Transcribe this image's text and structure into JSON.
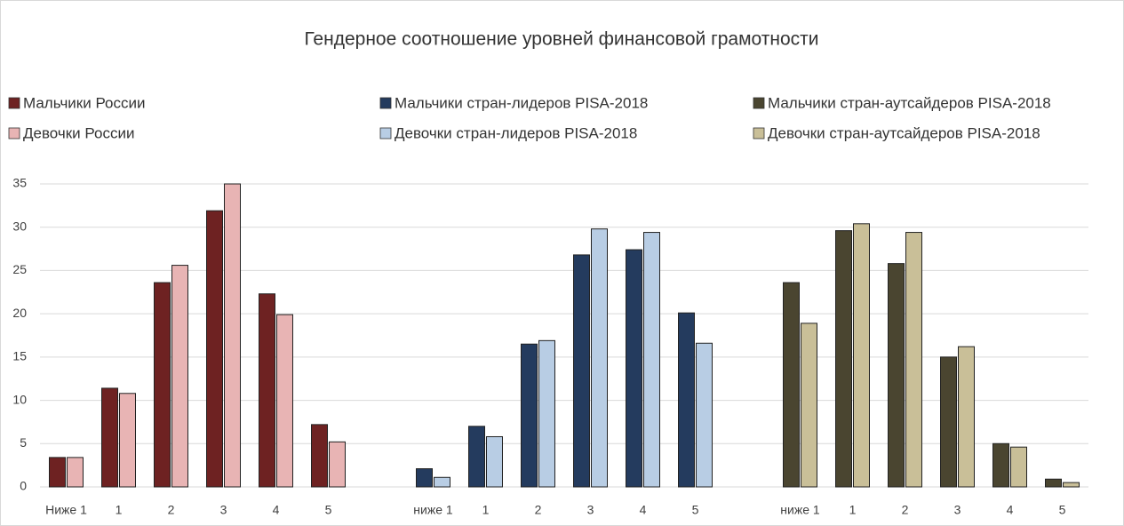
{
  "chart_data": {
    "type": "bar",
    "title": "Гендерное соотношение уровней финансовой грамотности",
    "categories": [
      "Ниже 1",
      "1",
      "2",
      "3",
      "4",
      "5",
      null,
      "ниже 1",
      "1",
      "2",
      "3",
      "4",
      "5",
      null,
      "ниже 1",
      "1",
      "2",
      "3",
      "4",
      "5"
    ],
    "series": [
      {
        "name": "Мальчики России",
        "color": "#6e2222",
        "values": [
          3.4,
          11.4,
          23.6,
          31.9,
          22.3,
          7.2,
          null,
          null,
          null,
          null,
          null,
          null,
          null,
          null,
          null,
          null,
          null,
          null,
          null,
          null
        ]
      },
      {
        "name": "Девочки России",
        "color": "#e8b4b4",
        "values": [
          3.4,
          10.8,
          25.6,
          35,
          19.9,
          5.2,
          null,
          null,
          null,
          null,
          null,
          null,
          null,
          null,
          null,
          null,
          null,
          null,
          null,
          null
        ]
      },
      {
        "name": "Мальчики стран-лидеров PISA-2018",
        "color": "#243b5e",
        "values": [
          null,
          null,
          null,
          null,
          null,
          null,
          null,
          2.1,
          7.0,
          16.5,
          26.8,
          27.4,
          20.1,
          null,
          null,
          null,
          null,
          null,
          null,
          null
        ]
      },
      {
        "name": "Девочки стран-лидеров PISA-2018",
        "color": "#b8cde4",
        "values": [
          null,
          null,
          null,
          null,
          null,
          null,
          null,
          1.1,
          5.8,
          16.9,
          29.8,
          29.4,
          16.6,
          null,
          null,
          null,
          null,
          null,
          null,
          null
        ]
      },
      {
        "name": "Мальчики стран-аутсайдеров PISA-2018",
        "color": "#4a4530",
        "values": [
          null,
          null,
          null,
          null,
          null,
          null,
          null,
          null,
          null,
          null,
          null,
          null,
          null,
          null,
          23.6,
          29.6,
          25.8,
          15.0,
          5.0,
          0.9
        ]
      },
      {
        "name": "Девочки стран-аутсайдеров PISA-2018",
        "color": "#c9bf98",
        "values": [
          null,
          null,
          null,
          null,
          null,
          null,
          null,
          null,
          null,
          null,
          null,
          null,
          null,
          null,
          18.9,
          30.4,
          29.4,
          16.2,
          4.6,
          0.5
        ]
      }
    ],
    "ylim": [
      0,
      35
    ],
    "yticks": [
      0,
      5,
      10,
      15,
      20,
      25,
      30,
      35
    ],
    "grid": true,
    "legend": "top"
  }
}
